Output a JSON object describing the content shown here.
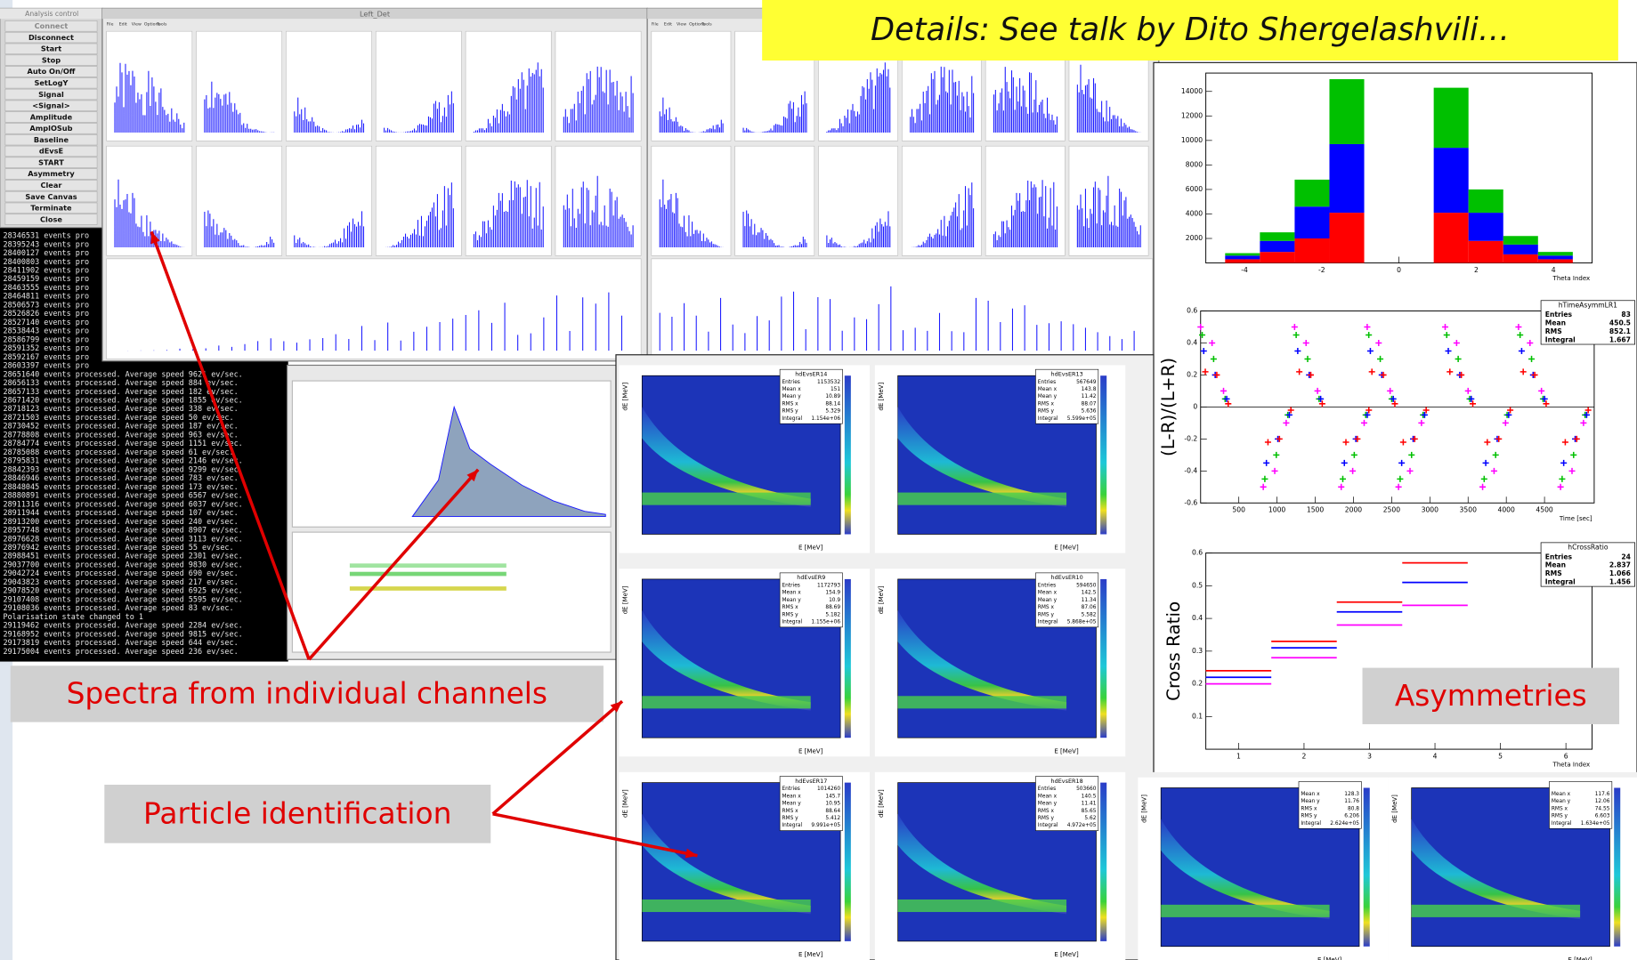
{
  "header": {
    "banner": "Details: See talk by Dito Shergelashvili…",
    "callouts": [
      "Spectra from individual channels",
      "Particle identification",
      "Asymmetries"
    ]
  },
  "control_panel": {
    "title": "Analysis control",
    "buttons": [
      "Connect",
      "Disconnect",
      "Start",
      "Stop",
      "Auto On/Off",
      "SetLogY",
      "Signal",
      "<Signal>",
      "Amplitude",
      "AmplOSub",
      "Baseline",
      "dEvsE",
      "START",
      "Asymmetry",
      "Clear",
      "Save Canvas",
      "Terminate",
      "Close"
    ]
  },
  "window": {
    "title": "Left_Det",
    "menu": [
      "File",
      "Edit",
      "View",
      "Options",
      "Tools"
    ]
  },
  "terminal": {
    "lines": [
      "28346531 events pro",
      "28395243 events pro",
      "28400127 events pro",
      "28400803 events pro",
      "28411902 events pro",
      "28459159 events pro",
      "28463555 events pro",
      "28464811 events pro",
      "28506573 events pro",
      "28526826 events pro",
      "28527140 events pro",
      "28538443 events pro",
      "28586799 events pro",
      "28591352 events pro",
      "28592167 events pro",
      "28603397 events pro",
      "28651640 events processed. Average speed 9621 ev/sec.",
      "28656133 events processed. Average speed 884 ev/sec.",
      "28657133 events processed. Average speed 182 ev/sec.",
      "28671420 events processed. Average speed 1855 ev/sec.",
      "28718123 events processed. Average speed 338 ev/sec.",
      "28721503 events processed. Average speed 50 ev/sec.",
      "28730452 events processed. Average speed 187 ev/sec.",
      "28778808 events processed. Average speed 963 ev/sec.",
      "28784774 events processed. Average speed 1151 ev/sec.",
      "28785088 events processed. Average speed 61 ev/sec.",
      "28795831 events processed. Average speed 2146 ev/sec.",
      "28842393 events processed. Average speed 9299 ev/sec.",
      "28846946 events processed. Average speed 783 ev/sec.",
      "28848045 events processed. Average speed 173 ev/sec.",
      "28880891 events processed. Average speed 6567 ev/sec.",
      "28911316 events processed. Average speed 6037 ev/sec.",
      "28911944 events processed. Average speed 107 ev/sec.",
      "28913200 events processed. Average speed 240 ev/sec.",
      "28957748 events processed. Average speed 8907 ev/sec.",
      "28976628 events processed. Average speed 3113 ev/sec.",
      "28976942 events processed. Average speed 55 ev/sec.",
      "28988451 events processed. Average speed 2301 ev/sec.",
      "29037700 events processed. Average speed 9830 ev/sec.",
      "29042724 events processed. Average speed 690 ev/sec.",
      "29043823 events processed. Average speed 217 ev/sec.",
      "29078520 events processed. Average speed 6925 ev/sec.",
      "29107408 events processed. Average speed 5595 ev/sec.",
      "29108036 events processed. Average speed 83 ev/sec.",
      "Polarisation state changed to 1",
      "29119462 events processed. Average speed 2284 ev/sec.",
      "29168952 events processed. Average speed 9815 ev/sec.",
      "29173819 events processed. Average speed 644 ev/sec.",
      "29175004 events processed. Average speed 236 ev/sec."
    ]
  },
  "pid": {
    "x_label": "E [MeV]",
    "y_label": "dE [MeV]",
    "panels": [
      {
        "name": "hdEvsER14",
        "stats": [
          [
            "Entries",
            "1153532"
          ],
          [
            "Mean x",
            "151"
          ],
          [
            "Mean y",
            "10.89"
          ],
          [
            "RMS x",
            "88.14"
          ],
          [
            "RMS y",
            "5.329"
          ],
          [
            "Integral",
            "1.154e+06"
          ]
        ]
      },
      {
        "name": "hdEvsER13",
        "stats": [
          [
            "Entries",
            "567649"
          ],
          [
            "Mean x",
            "143.8"
          ],
          [
            "Mean y",
            "11.42"
          ],
          [
            "RMS x",
            "88.07"
          ],
          [
            "RMS y",
            "5.636"
          ],
          [
            "Integral",
            "5.599e+05"
          ]
        ]
      },
      {
        "name": "hdEvsER9",
        "stats": [
          [
            "Entries",
            "1172793"
          ],
          [
            "Mean x",
            "154.9"
          ],
          [
            "Mean y",
            "10.9"
          ],
          [
            "RMS x",
            "88.69"
          ],
          [
            "RMS y",
            "5.182"
          ],
          [
            "Integral",
            "1.155e+06"
          ]
        ]
      },
      {
        "name": "hdEvsER10",
        "stats": [
          [
            "Entries",
            "594650"
          ],
          [
            "Mean x",
            "142.5"
          ],
          [
            "Mean y",
            "11.34"
          ],
          [
            "RMS x",
            "87.06"
          ],
          [
            "RMS y",
            "5.582"
          ],
          [
            "Integral",
            "5.868e+05"
          ]
        ]
      },
      {
        "name": "hdEvsER17",
        "stats": [
          [
            "Entries",
            "1014260"
          ],
          [
            "Mean x",
            "145.7"
          ],
          [
            "Mean y",
            "10.95"
          ],
          [
            "RMS x",
            "88.64"
          ],
          [
            "RMS y",
            "5.412"
          ],
          [
            "Integral",
            "9.991e+05"
          ]
        ]
      },
      {
        "name": "hdEvsER18",
        "stats": [
          [
            "Entries",
            "503660"
          ],
          [
            "Mean x",
            "140.5"
          ],
          [
            "Mean y",
            "11.41"
          ],
          [
            "RMS x",
            "85.65"
          ],
          [
            "RMS y",
            "5.62"
          ],
          [
            "Integral",
            "4.972e+05"
          ]
        ]
      },
      {
        "stats": [
          [
            "Mean x",
            "128.3"
          ],
          [
            "Mean y",
            "11.76"
          ],
          [
            "RMS x",
            "80.8"
          ],
          [
            "RMS y",
            "6.206"
          ],
          [
            "Integral",
            "2.624e+05"
          ]
        ]
      },
      {
        "stats": [
          [
            "Mean x",
            "117.6"
          ],
          [
            "Mean y",
            "12.06"
          ],
          [
            "RMS x",
            "74.55"
          ],
          [
            "RMS y",
            "6.603"
          ],
          [
            "Integral",
            "1.634e+05"
          ]
        ]
      }
    ]
  },
  "chart_data": [
    {
      "type": "histogram",
      "stacked": true,
      "x_label": "Theta Index",
      "bins": [
        -4.5,
        -3.6,
        -2.7,
        -1.8,
        -0.9,
        0,
        0.9,
        1.8,
        2.7,
        3.6,
        4.5
      ],
      "xlim": [
        -5,
        5
      ],
      "ylim": [
        0,
        15500
      ],
      "xticks": [
        -4,
        -2,
        0,
        2,
        4
      ],
      "yticks": [
        2000,
        4000,
        6000,
        8000,
        10000,
        12000,
        14000
      ],
      "series": [
        {
          "color": "#ff0000",
          "values": [
            300,
            900,
            2000,
            4100,
            0,
            0,
            4100,
            1800,
            700,
            300
          ]
        },
        {
          "color": "#0000ff",
          "values": [
            300,
            900,
            2600,
            5600,
            0,
            0,
            5300,
            2300,
            800,
            300
          ]
        },
        {
          "color": "#00c000",
          "values": [
            200,
            700,
            2200,
            5300,
            0,
            0,
            4900,
            1900,
            700,
            300
          ]
        }
      ]
    },
    {
      "type": "scatter",
      "y_label": "(L-R)/(L+R)",
      "x_label": "Time [sec]",
      "xlim": [
        0,
        5150
      ],
      "ylim": [
        -0.6,
        0.6
      ],
      "xticks": [
        500,
        1000,
        1500,
        2000,
        2500,
        3000,
        3500,
        4000,
        4500
      ],
      "yticks": [
        -0.6,
        -0.4,
        -0.2,
        0,
        0.2,
        0.4,
        0.6
      ],
      "stats_title": "hTimeAsymmLR1",
      "stats": [
        {
          "label": "Entries",
          "value": 83
        },
        {
          "label": "Mean",
          "value": 450.5
        },
        {
          "label": "RMS",
          "value": 852.1
        },
        {
          "label": "Integral",
          "value": 1.667
        }
      ],
      "x": [
        0,
        150,
        300,
        820,
        970,
        1120,
        1230,
        1380,
        1530,
        1840,
        1990,
        2140,
        2180,
        2330,
        2480,
        2590,
        2740,
        2890,
        3200,
        3350,
        3500,
        3690,
        3840,
        3990,
        4160,
        4310,
        4460,
        4710,
        4860,
        5010
      ],
      "series": [
        {
          "color": "#ff00ff",
          "values": [
            0.5,
            0.4,
            0.1,
            -0.5,
            -0.4,
            -0.1,
            0.5,
            0.4,
            0.1,
            -0.5,
            -0.4,
            -0.1,
            0.5,
            0.4,
            0.1,
            -0.5,
            -0.4,
            -0.1,
            0.5,
            0.4,
            0.1,
            -0.5,
            -0.4,
            -0.1,
            0.5,
            0.4,
            0.1,
            -0.5,
            -0.4,
            -0.1
          ]
        },
        {
          "color": "#00c000",
          "values": [
            0.45,
            0.3,
            0.05,
            -0.45,
            -0.3,
            -0.05,
            0.45,
            0.3,
            0.05,
            -0.45,
            -0.3,
            -0.05,
            0.45,
            0.3,
            0.05,
            -0.45,
            -0.3,
            -0.05,
            0.45,
            0.3,
            0.05,
            -0.45,
            -0.3,
            -0.05,
            0.45,
            0.3,
            0.05,
            -0.45,
            -0.3,
            -0.05
          ]
        },
        {
          "color": "#0000ff",
          "values": [
            0.35,
            0.2,
            0.05,
            -0.35,
            -0.2,
            -0.05,
            0.35,
            0.2,
            0.05,
            -0.35,
            -0.2,
            -0.05,
            0.35,
            0.2,
            0.05,
            -0.35,
            -0.2,
            -0.05,
            0.35,
            0.2,
            0.05,
            -0.35,
            -0.2,
            -0.05,
            0.35,
            0.2,
            0.05,
            -0.35,
            -0.2,
            -0.05
          ]
        },
        {
          "color": "#ff0000",
          "values": [
            0.22,
            0.2,
            0.02,
            -0.22,
            -0.2,
            -0.02,
            0.22,
            0.2,
            0.02,
            -0.22,
            -0.2,
            -0.02,
            0.22,
            0.2,
            0.02,
            -0.22,
            -0.2,
            -0.02,
            0.22,
            0.2,
            0.02,
            -0.22,
            -0.2,
            -0.02,
            0.22,
            0.2,
            0.02,
            -0.22,
            -0.2,
            -0.02
          ]
        }
      ]
    },
    {
      "type": "errorbar",
      "y_label": "Cross Ratio",
      "x_label": "Theta Index",
      "xlim": [
        0.5,
        6.4
      ],
      "ylim": [
        0,
        0.6
      ],
      "xticks": [
        1,
        2,
        3,
        4,
        5,
        6
      ],
      "yticks": [
        0.1,
        0.2,
        0.3,
        0.4,
        0.5,
        0.6
      ],
      "stats_title": "hCrossRatio",
      "stats": [
        {
          "label": "Entries",
          "value": 24
        },
        {
          "label": "Mean",
          "value": 2.837
        },
        {
          "label": "RMS",
          "value": 1.066
        },
        {
          "label": "Integral",
          "value": 1.456
        }
      ],
      "x": [
        1,
        2,
        3,
        4
      ],
      "xerr": [
        0.5,
        0.5,
        0.5,
        0.5
      ],
      "series": [
        {
          "color": "#ff0000",
          "values": [
            0.24,
            0.33,
            0.45,
            0.57
          ]
        },
        {
          "color": "#0000ff",
          "values": [
            0.22,
            0.31,
            0.42,
            0.51
          ]
        },
        {
          "color": "#ff00ff",
          "values": [
            0.2,
            0.28,
            0.38,
            0.44
          ]
        }
      ]
    }
  ]
}
